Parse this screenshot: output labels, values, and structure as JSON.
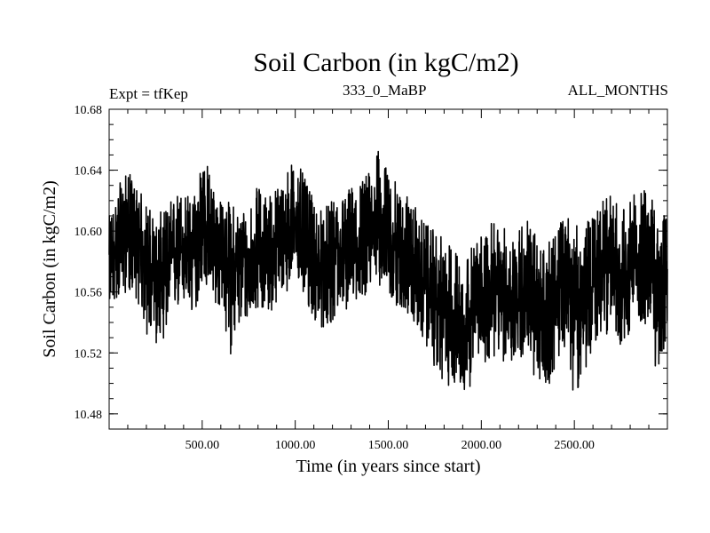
{
  "chart_data": {
    "type": "line",
    "title": "Soil Carbon (in kgC/m2)",
    "subtitle_left": "Expt = tfKep",
    "subtitle_center": "333_0_MaBP",
    "subtitle_right": "ALL_MONTHS",
    "xlabel": "Time (in years since start)",
    "ylabel": "Soil Carbon (in kgC/m2)",
    "xlim": [
      0,
      3000
    ],
    "ylim": [
      10.47,
      10.68
    ],
    "xticks": [
      500,
      1000,
      1500,
      2000,
      2500
    ],
    "xtick_labels": [
      "500.00",
      "1000.00",
      "1500.00",
      "2000.00",
      "2500.00"
    ],
    "yticks": [
      10.48,
      10.52,
      10.56,
      10.6,
      10.64,
      10.68
    ],
    "ytick_labels": [
      "10.48",
      "10.52",
      "10.56",
      "10.60",
      "10.64",
      "10.68"
    ],
    "grid": false,
    "series": [
      {
        "color": "#000000",
        "x": [
          0,
          50,
          100,
          150,
          200,
          250,
          300,
          350,
          400,
          450,
          500,
          550,
          600,
          650,
          700,
          750,
          800,
          850,
          900,
          950,
          1000,
          1050,
          1100,
          1150,
          1200,
          1250,
          1300,
          1350,
          1400,
          1450,
          1500,
          1550,
          1600,
          1650,
          1700,
          1750,
          1800,
          1850,
          1900,
          1950,
          2000,
          2050,
          2100,
          2150,
          2200,
          2250,
          2300,
          2350,
          2400,
          2450,
          2500,
          2550,
          2600,
          2650,
          2700,
          2750,
          2800,
          2850,
          2900,
          2950,
          3000
        ],
        "y_mean": [
          10.58,
          10.59,
          10.6,
          10.595,
          10.575,
          10.565,
          10.57,
          10.585,
          10.59,
          10.58,
          10.605,
          10.595,
          10.585,
          10.58,
          10.575,
          10.58,
          10.59,
          10.585,
          10.59,
          10.6,
          10.605,
          10.595,
          10.58,
          10.575,
          10.58,
          10.585,
          10.59,
          10.595,
          10.6,
          10.605,
          10.595,
          10.59,
          10.585,
          10.575,
          10.565,
          10.555,
          10.55,
          10.545,
          10.54,
          10.545,
          10.555,
          10.56,
          10.56,
          10.555,
          10.56,
          10.565,
          10.55,
          10.545,
          10.555,
          10.57,
          10.56,
          10.55,
          10.565,
          10.575,
          10.58,
          10.57,
          10.575,
          10.585,
          10.58,
          10.57,
          10.575
        ],
        "y_max": [
          10.61,
          10.63,
          10.64,
          10.63,
          10.62,
          10.61,
          10.615,
          10.625,
          10.63,
          10.62,
          10.658,
          10.635,
          10.62,
          10.62,
          10.615,
          10.62,
          10.63,
          10.625,
          10.63,
          10.64,
          10.65,
          10.635,
          10.62,
          10.615,
          10.62,
          10.625,
          10.63,
          10.635,
          10.64,
          10.654,
          10.64,
          10.63,
          10.625,
          10.615,
          10.605,
          10.6,
          10.595,
          10.59,
          10.585,
          10.59,
          10.6,
          10.605,
          10.605,
          10.6,
          10.605,
          10.61,
          10.595,
          10.59,
          10.6,
          10.615,
          10.605,
          10.6,
          10.615,
          10.62,
          10.625,
          10.615,
          10.62,
          10.63,
          10.625,
          10.615,
          10.61
        ],
        "y_min": [
          10.55,
          10.555,
          10.56,
          10.555,
          10.53,
          10.525,
          10.53,
          10.545,
          10.55,
          10.54,
          10.565,
          10.555,
          10.545,
          10.518,
          10.535,
          10.54,
          10.55,
          10.545,
          10.55,
          10.56,
          10.565,
          10.555,
          10.54,
          10.535,
          10.54,
          10.545,
          10.55,
          10.555,
          10.56,
          10.565,
          10.555,
          10.55,
          10.545,
          10.535,
          10.525,
          10.51,
          10.495,
          10.5,
          10.49,
          10.5,
          10.51,
          10.515,
          10.515,
          10.51,
          10.515,
          10.52,
          10.49,
          10.495,
          10.51,
          10.525,
          10.49,
          10.505,
          10.52,
          10.53,
          10.535,
          10.525,
          10.53,
          10.54,
          10.535,
          10.5,
          10.53
        ]
      }
    ]
  }
}
